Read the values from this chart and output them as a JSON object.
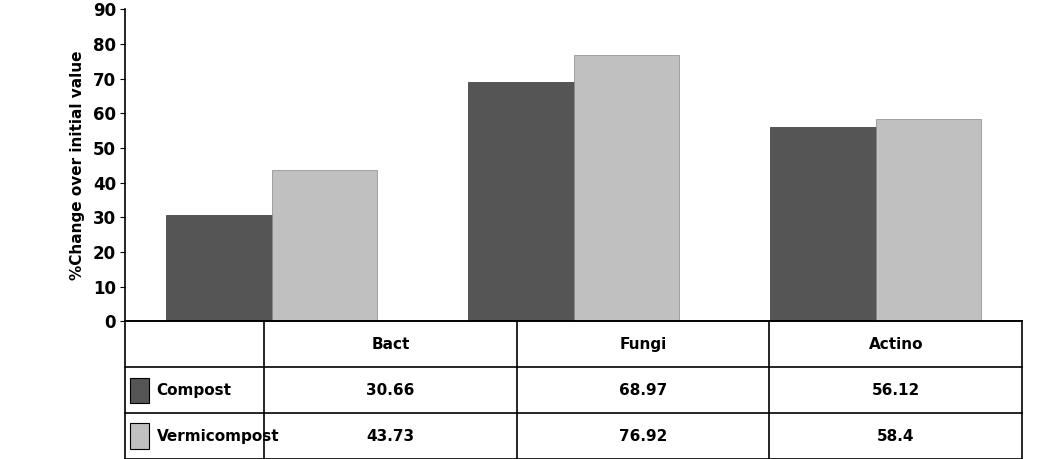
{
  "categories": [
    "Bact",
    "Fungi",
    "Actino"
  ],
  "compost_values": [
    30.66,
    68.97,
    56.12
  ],
  "vermicompost_values": [
    43.73,
    76.92,
    58.4
  ],
  "compost_color": "#555555",
  "vermicompost_color": "#c0c0c0",
  "ylabel": "%Change over initial value",
  "ylim": [
    0,
    90
  ],
  "yticks": [
    0,
    10,
    20,
    30,
    40,
    50,
    60,
    70,
    80,
    90
  ],
  "table_rows": [
    [
      "30.66",
      "68.97",
      "56.12"
    ],
    [
      "43.73",
      "76.92",
      "58.4"
    ]
  ],
  "row_labels": [
    "Compost",
    "Vermicompost"
  ],
  "bar_width": 0.35,
  "background_color": "#ffffff"
}
